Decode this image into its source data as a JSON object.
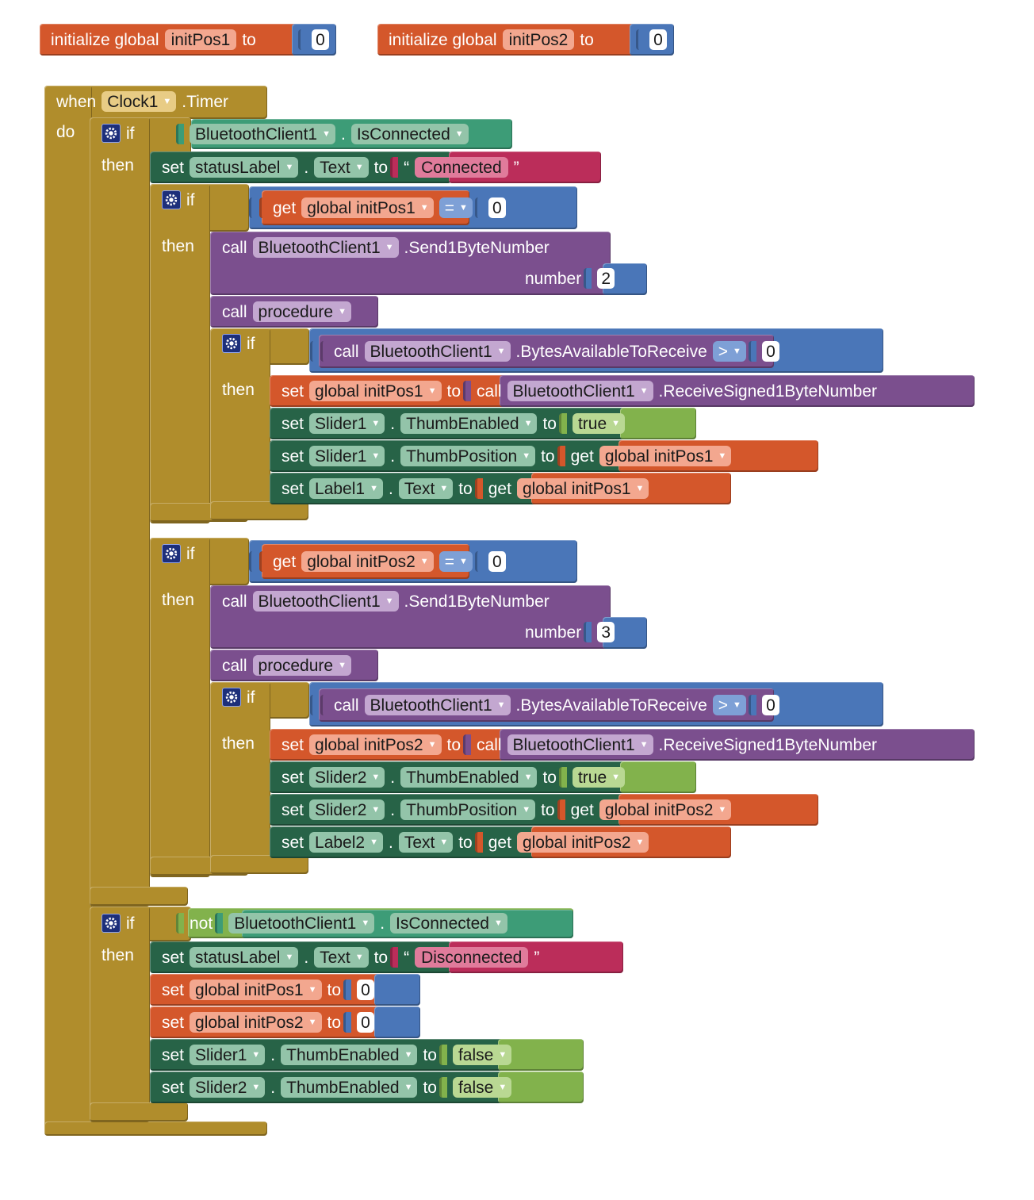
{
  "colors": {
    "variable": "#d4572b",
    "event": "#b08d2c",
    "control": "#b08d2c",
    "setter": "#276347",
    "getter_comp": "#3d9c77",
    "procedure": "#7b4f8e",
    "math": "#4a76b8",
    "text": "#bb2d5a",
    "logic": "#82b24c",
    "field_var": "#f3a78f",
    "field_comp": "#93c4a9",
    "field_proc": "#c3a7d0",
    "field_event": "#e8cc85"
  },
  "init": [
    {
      "prefix": "initialize global",
      "name": "initPos1",
      "to": "to",
      "value": "0"
    },
    {
      "prefix": "initialize global",
      "name": "initPos2",
      "to": "to",
      "value": "0"
    }
  ],
  "event": {
    "when": "when",
    "component": "Clock1",
    "event": ".Timer",
    "do": "do"
  },
  "kw": {
    "if": "if",
    "then": "then",
    "set": "set",
    "to": "to",
    "get": "get",
    "call": "call",
    "number": "number",
    "not": "not",
    "dot": ".",
    "eq": "=",
    "gt": ">",
    "open_quote": "“",
    "close_quote": "”"
  },
  "if1": {
    "cond": {
      "component": "BluetoothClient1",
      "property": "IsConnected"
    },
    "set_status": {
      "component": "statusLabel",
      "property": "Text",
      "value": "Connected"
    }
  },
  "pos_blocks": [
    {
      "var": "global initPos1",
      "compare_value": "0",
      "send_component": "BluetoothClient1",
      "send_method": ".Send1ByteNumber",
      "send_value": "2",
      "procedure": "procedure",
      "bytes_component": "BluetoothClient1",
      "bytes_method": ".BytesAvailableToReceive",
      "bytes_value": "0",
      "recv_component": "BluetoothClient1",
      "recv_method": ".ReceiveSigned1ByteNumber",
      "slider": "Slider1",
      "thumb_enabled": "ThumbEnabled",
      "thumb_enabled_value": "true",
      "thumb_position": "ThumbPosition",
      "label": "Label1",
      "text_prop": "Text"
    },
    {
      "var": "global initPos2",
      "compare_value": "0",
      "send_component": "BluetoothClient1",
      "send_method": ".Send1ByteNumber",
      "send_value": "3",
      "procedure": "procedure",
      "bytes_component": "BluetoothClient1",
      "bytes_method": ".BytesAvailableToReceive",
      "bytes_value": "0",
      "recv_component": "BluetoothClient1",
      "recv_method": ".ReceiveSigned1ByteNumber",
      "slider": "Slider2",
      "thumb_enabled": "ThumbEnabled",
      "thumb_enabled_value": "true",
      "thumb_position": "ThumbPosition",
      "label": "Label2",
      "text_prop": "Text"
    }
  ],
  "if_not": {
    "cond": {
      "component": "BluetoothClient1",
      "property": "IsConnected"
    },
    "set_status": {
      "component": "statusLabel",
      "property": "Text",
      "value": "Disconnected"
    },
    "reset": [
      {
        "var": "global initPos1",
        "value": "0"
      },
      {
        "var": "global initPos2",
        "value": "0"
      }
    ],
    "disable": [
      {
        "component": "Slider1",
        "property": "ThumbEnabled",
        "value": "false"
      },
      {
        "component": "Slider2",
        "property": "ThumbEnabled",
        "value": "false"
      }
    ]
  }
}
